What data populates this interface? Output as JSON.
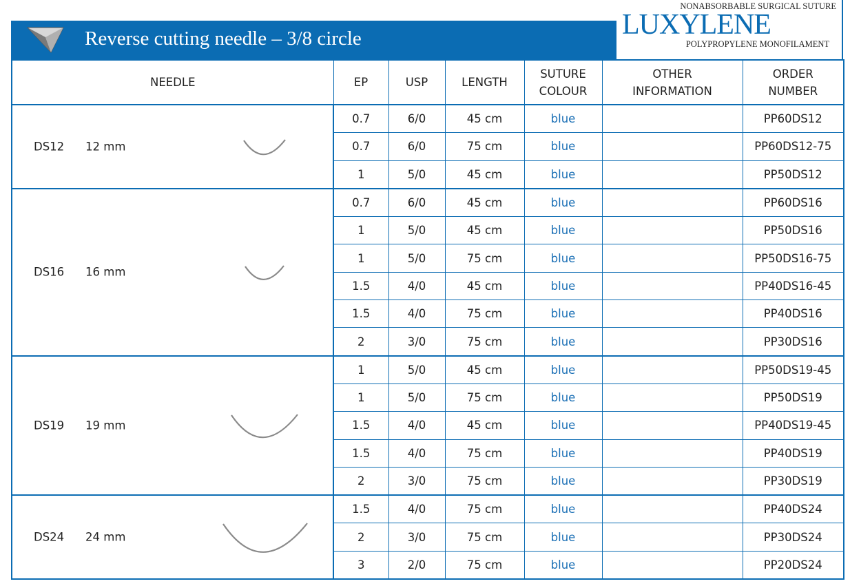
{
  "header": {
    "title": "Reverse cutting needle – 3/8 circle"
  },
  "brand": {
    "tagline": "NONABSORBABLE SURGICAL SUTURE",
    "name": "LUXYLENE",
    "subtitle": "POLYPROPYLENE MONOFILAMENT"
  },
  "table": {
    "headers": [
      [
        "NEEDLE"
      ],
      [
        "EP"
      ],
      [
        "USP"
      ],
      [
        "LENGTH"
      ],
      [
        "SUTURE",
        "COLOUR"
      ],
      [
        "OTHER",
        "INFORMATION"
      ],
      [
        "ORDER",
        "NUMBER"
      ]
    ],
    "groups": [
      {
        "code": "DS12",
        "size": "12 mm",
        "rows": [
          {
            "ep": "0.7",
            "usp": "6/0",
            "length": "45 cm",
            "colour": "blue",
            "order": "PP60DS12"
          },
          {
            "ep": "0.7",
            "usp": "6/0",
            "length": "75 cm",
            "colour": "blue",
            "order": "PP60DS12-75"
          },
          {
            "ep": "1",
            "usp": "5/0",
            "length": "45 cm",
            "colour": "blue",
            "order": "PP50DS12"
          }
        ]
      },
      {
        "code": "DS16",
        "size": "16 mm",
        "rows": [
          {
            "ep": "0.7",
            "usp": "6/0",
            "length": "45 cm",
            "colour": "blue",
            "order": "PP60DS16"
          },
          {
            "ep": "1",
            "usp": "5/0",
            "length": "45 cm",
            "colour": "blue",
            "order": "PP50DS16"
          },
          {
            "ep": "1",
            "usp": "5/0",
            "length": "75 cm",
            "colour": "blue",
            "order": "PP50DS16-75"
          },
          {
            "ep": "1.5",
            "usp": "4/0",
            "length": "45 cm",
            "colour": "blue",
            "order": "PP40DS16-45"
          },
          {
            "ep": "1.5",
            "usp": "4/0",
            "length": "75 cm",
            "colour": "blue",
            "order": "PP40DS16"
          },
          {
            "ep": "2",
            "usp": "3/0",
            "length": "75 cm",
            "colour": "blue",
            "order": "PP30DS16"
          }
        ]
      },
      {
        "code": "DS19",
        "size": "19 mm",
        "rows": [
          {
            "ep": "1",
            "usp": "5/0",
            "length": "45 cm",
            "colour": "blue",
            "order": "PP50DS19-45"
          },
          {
            "ep": "1",
            "usp": "5/0",
            "length": "75 cm",
            "colour": "blue",
            "order": "PP50DS19"
          },
          {
            "ep": "1.5",
            "usp": "4/0",
            "length": "45 cm",
            "colour": "blue",
            "order": "PP40DS19-45"
          },
          {
            "ep": "1.5",
            "usp": "4/0",
            "length": "75 cm",
            "colour": "blue",
            "order": "PP40DS19"
          },
          {
            "ep": "2",
            "usp": "3/0",
            "length": "75 cm",
            "colour": "blue",
            "order": "PP30DS19"
          }
        ]
      },
      {
        "code": "DS24",
        "size": "24 mm",
        "rows": [
          {
            "ep": "1.5",
            "usp": "4/0",
            "length": "75 cm",
            "colour": "blue",
            "order": "PP40DS24"
          },
          {
            "ep": "2",
            "usp": "3/0",
            "length": "75 cm",
            "colour": "blue",
            "order": "PP30DS24"
          },
          {
            "ep": "3",
            "usp": "2/0",
            "length": "75 cm",
            "colour": "blue",
            "order": "PP20DS24"
          }
        ]
      }
    ]
  }
}
